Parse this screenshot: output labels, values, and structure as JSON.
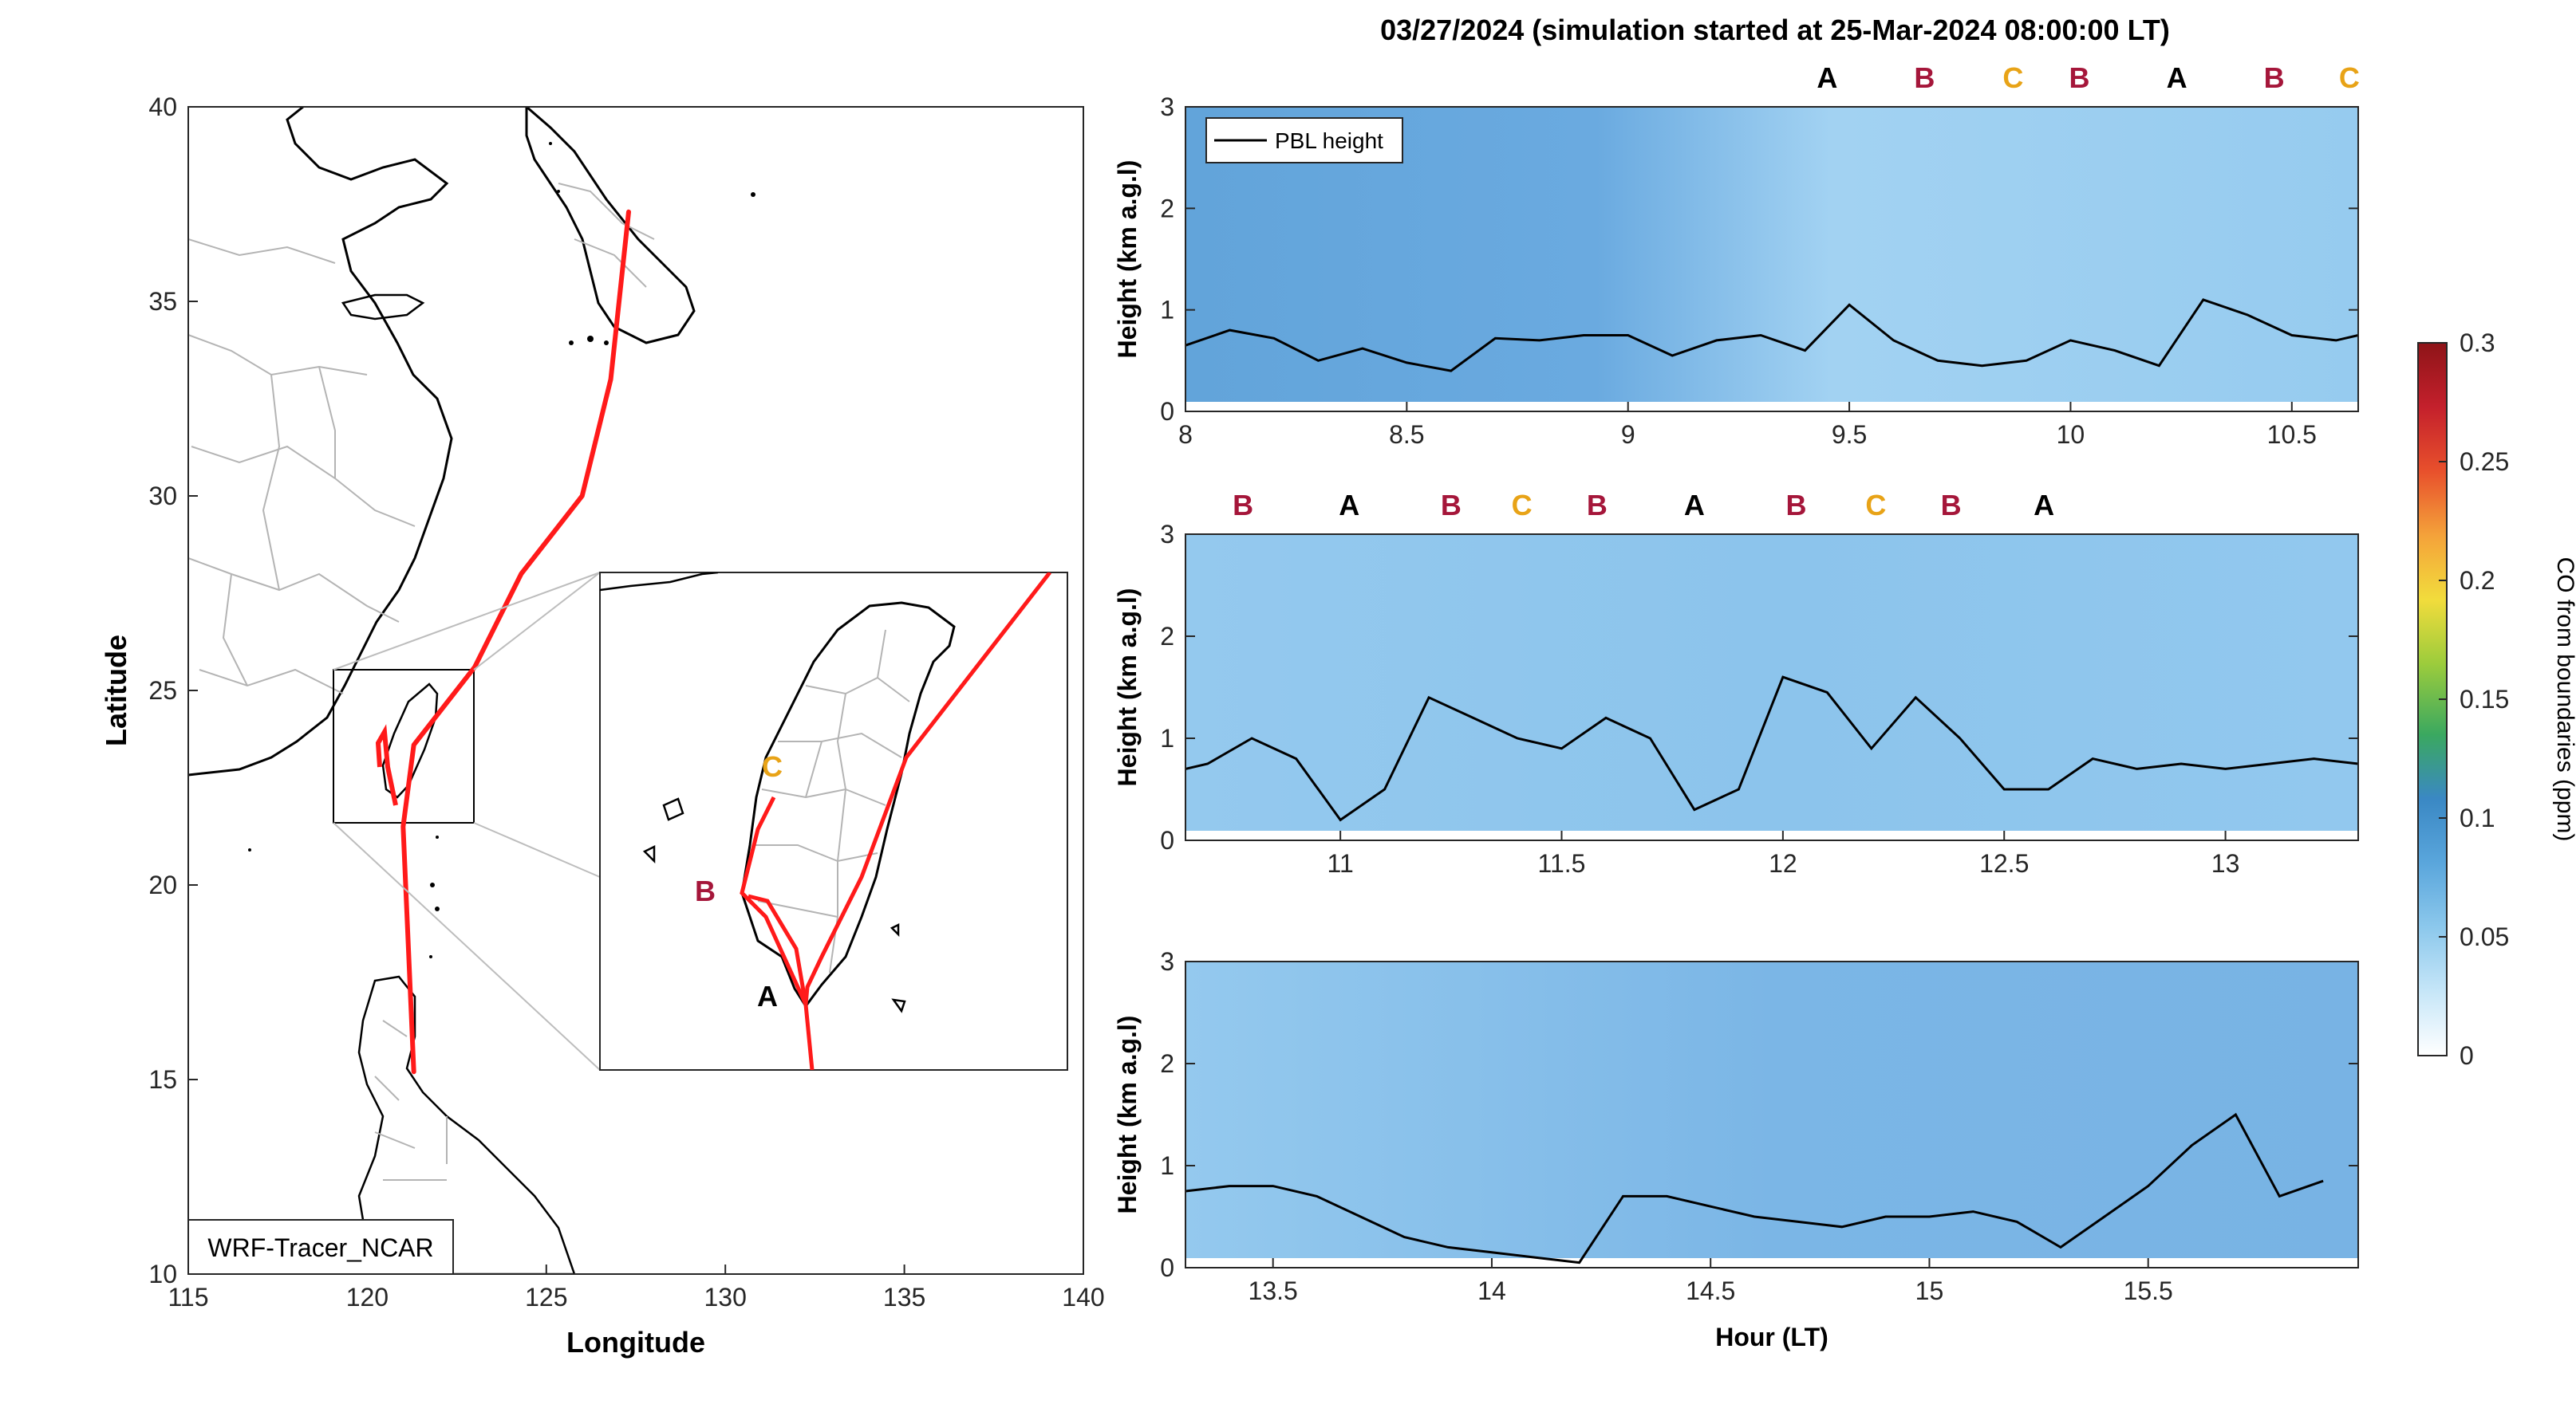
{
  "figure_title": "03/27/2024 (simulation started at 25-Mar-2024 08:00:00 LT)",
  "map": {
    "xlabel": "Longitude",
    "ylabel": "Latitude",
    "xticks": [
      "115",
      "120",
      "125",
      "130",
      "135",
      "140"
    ],
    "yticks": [
      "10",
      "15",
      "20",
      "25",
      "30",
      "35",
      "40"
    ],
    "xlim": [
      115,
      140
    ],
    "ylim": [
      10,
      40
    ],
    "model_label": "WRF-Tracer_NCAR",
    "track_color": "#ff1a1a",
    "track": [
      [
        121.3,
        15.2
      ],
      [
        121.0,
        21.5
      ],
      [
        121.3,
        23.6
      ],
      [
        123.0,
        25.6
      ],
      [
        124.3,
        28.0
      ],
      [
        126.0,
        30.0
      ],
      [
        126.8,
        33.0
      ],
      [
        127.3,
        37.3
      ]
    ],
    "inset_labels": [
      {
        "label": "A",
        "color": "#000000"
      },
      {
        "label": "B",
        "color": "#a5163a"
      },
      {
        "label": "C",
        "color": "#e8a317"
      }
    ]
  },
  "curtain": {
    "ylabel": "Height (km a.g.l)",
    "xlabel": "Hour (LT)",
    "legend": "PBL height",
    "yticks": [
      "0",
      "1",
      "2",
      "3"
    ],
    "ylim": [
      0,
      3
    ],
    "panels": [
      {
        "xlim": [
          8.0,
          10.65
        ],
        "xticks": [
          "8",
          "8.5",
          "9",
          "9.5",
          "10",
          "10.5"
        ],
        "site_labels": [
          {
            "label": "A",
            "hour": 9.45,
            "color": "#000000"
          },
          {
            "label": "B",
            "hour": 9.67,
            "color": "#a5163a"
          },
          {
            "label": "C",
            "hour": 9.87,
            "color": "#e8a317"
          },
          {
            "label": "B",
            "hour": 10.02,
            "color": "#a5163a"
          },
          {
            "label": "A",
            "hour": 10.24,
            "color": "#000000"
          },
          {
            "label": "B",
            "hour": 10.46,
            "color": "#a5163a"
          },
          {
            "label": "C",
            "hour": 10.63,
            "color": "#e8a317"
          }
        ]
      },
      {
        "xlim": [
          10.65,
          13.3
        ],
        "xticks": [
          "11",
          "11.5",
          "12",
          "12.5",
          "13"
        ],
        "site_labels": [
          {
            "label": "B",
            "hour": 10.78,
            "color": "#a5163a"
          },
          {
            "label": "A",
            "hour": 11.02,
            "color": "#000000"
          },
          {
            "label": "B",
            "hour": 11.25,
            "color": "#a5163a"
          },
          {
            "label": "C",
            "hour": 11.41,
            "color": "#e8a317"
          },
          {
            "label": "B",
            "hour": 11.58,
            "color": "#a5163a"
          },
          {
            "label": "A",
            "hour": 11.8,
            "color": "#000000"
          },
          {
            "label": "B",
            "hour": 12.03,
            "color": "#a5163a"
          },
          {
            "label": "C",
            "hour": 12.21,
            "color": "#e8a317"
          },
          {
            "label": "B",
            "hour": 12.38,
            "color": "#a5163a"
          },
          {
            "label": "A",
            "hour": 12.59,
            "color": "#000000"
          }
        ]
      },
      {
        "xlim": [
          13.3,
          15.98
        ],
        "xticks": [
          "13.5",
          "14",
          "14.5",
          "15",
          "15.5"
        ],
        "site_labels": []
      }
    ]
  },
  "colorbar": {
    "label": "CO from boundaries (ppm)",
    "ticks": [
      "0",
      "0.05",
      "0.1",
      "0.15",
      "0.2",
      "0.25",
      "0.3"
    ],
    "range": [
      0,
      0.3
    ],
    "colors": [
      "#ffffff",
      "#c6e6f8",
      "#8cc8ec",
      "#5aa6dc",
      "#3a88c4",
      "#3aa860",
      "#9ccc3c",
      "#f2dc3c",
      "#f4a23a",
      "#e8502c",
      "#c4202c",
      "#8e1418"
    ]
  },
  "chart_data": {
    "type": "line",
    "title": "03/27/2024 (simulation started at 25-Mar-2024 08:00:00 LT)",
    "xlabel": "Hour (LT)",
    "ylabel": "Height (km a.g.l)",
    "ylim": [
      0,
      3
    ],
    "series": [
      {
        "name": "PBL height",
        "x": [
          8.0,
          8.1,
          8.2,
          8.3,
          8.4,
          8.5,
          8.6,
          8.7,
          8.8,
          8.9,
          9.0,
          9.1,
          9.2,
          9.3,
          9.4,
          9.5,
          9.6,
          9.7,
          9.8,
          9.9,
          10.0,
          10.1,
          10.2,
          10.3,
          10.4,
          10.5,
          10.6,
          10.7,
          10.8,
          10.9,
          11.0,
          11.1,
          11.2,
          11.3,
          11.4,
          11.5,
          11.6,
          11.7,
          11.8,
          11.9,
          12.0,
          12.1,
          12.2,
          12.3,
          12.4,
          12.5,
          12.6,
          12.7,
          12.8,
          12.9,
          13.0,
          13.1,
          13.2,
          13.3,
          13.4,
          13.5,
          13.6,
          13.7,
          13.8,
          13.9,
          14.0,
          14.1,
          14.2,
          14.3,
          14.4,
          14.5,
          14.6,
          14.7,
          14.8,
          14.9,
          15.0,
          15.1,
          15.2,
          15.3,
          15.4,
          15.5,
          15.6,
          15.7,
          15.8,
          15.9
        ],
        "values": [
          0.65,
          0.8,
          0.72,
          0.5,
          0.62,
          0.48,
          0.4,
          0.72,
          0.7,
          0.75,
          0.75,
          0.55,
          0.7,
          0.75,
          0.6,
          1.05,
          0.7,
          0.5,
          0.45,
          0.5,
          0.7,
          0.6,
          0.45,
          1.1,
          0.95,
          0.75,
          0.7,
          0.75,
          1.0,
          0.8,
          0.2,
          0.5,
          1.4,
          1.2,
          1.0,
          0.9,
          1.2,
          1.0,
          0.3,
          0.5,
          1.6,
          1.45,
          0.9,
          1.4,
          1.0,
          0.5,
          0.5,
          0.8,
          0.7,
          0.75,
          0.7,
          0.75,
          0.8,
          0.75,
          0.8,
          0.8,
          0.7,
          0.5,
          0.3,
          0.2,
          0.15,
          0.1,
          0.05,
          0.7,
          0.7,
          0.6,
          0.5,
          0.45,
          0.4,
          0.5,
          0.5,
          0.55,
          0.45,
          0.2,
          0.5,
          0.8,
          1.2,
          1.5,
          0.7,
          0.85
        ]
      }
    ]
  }
}
